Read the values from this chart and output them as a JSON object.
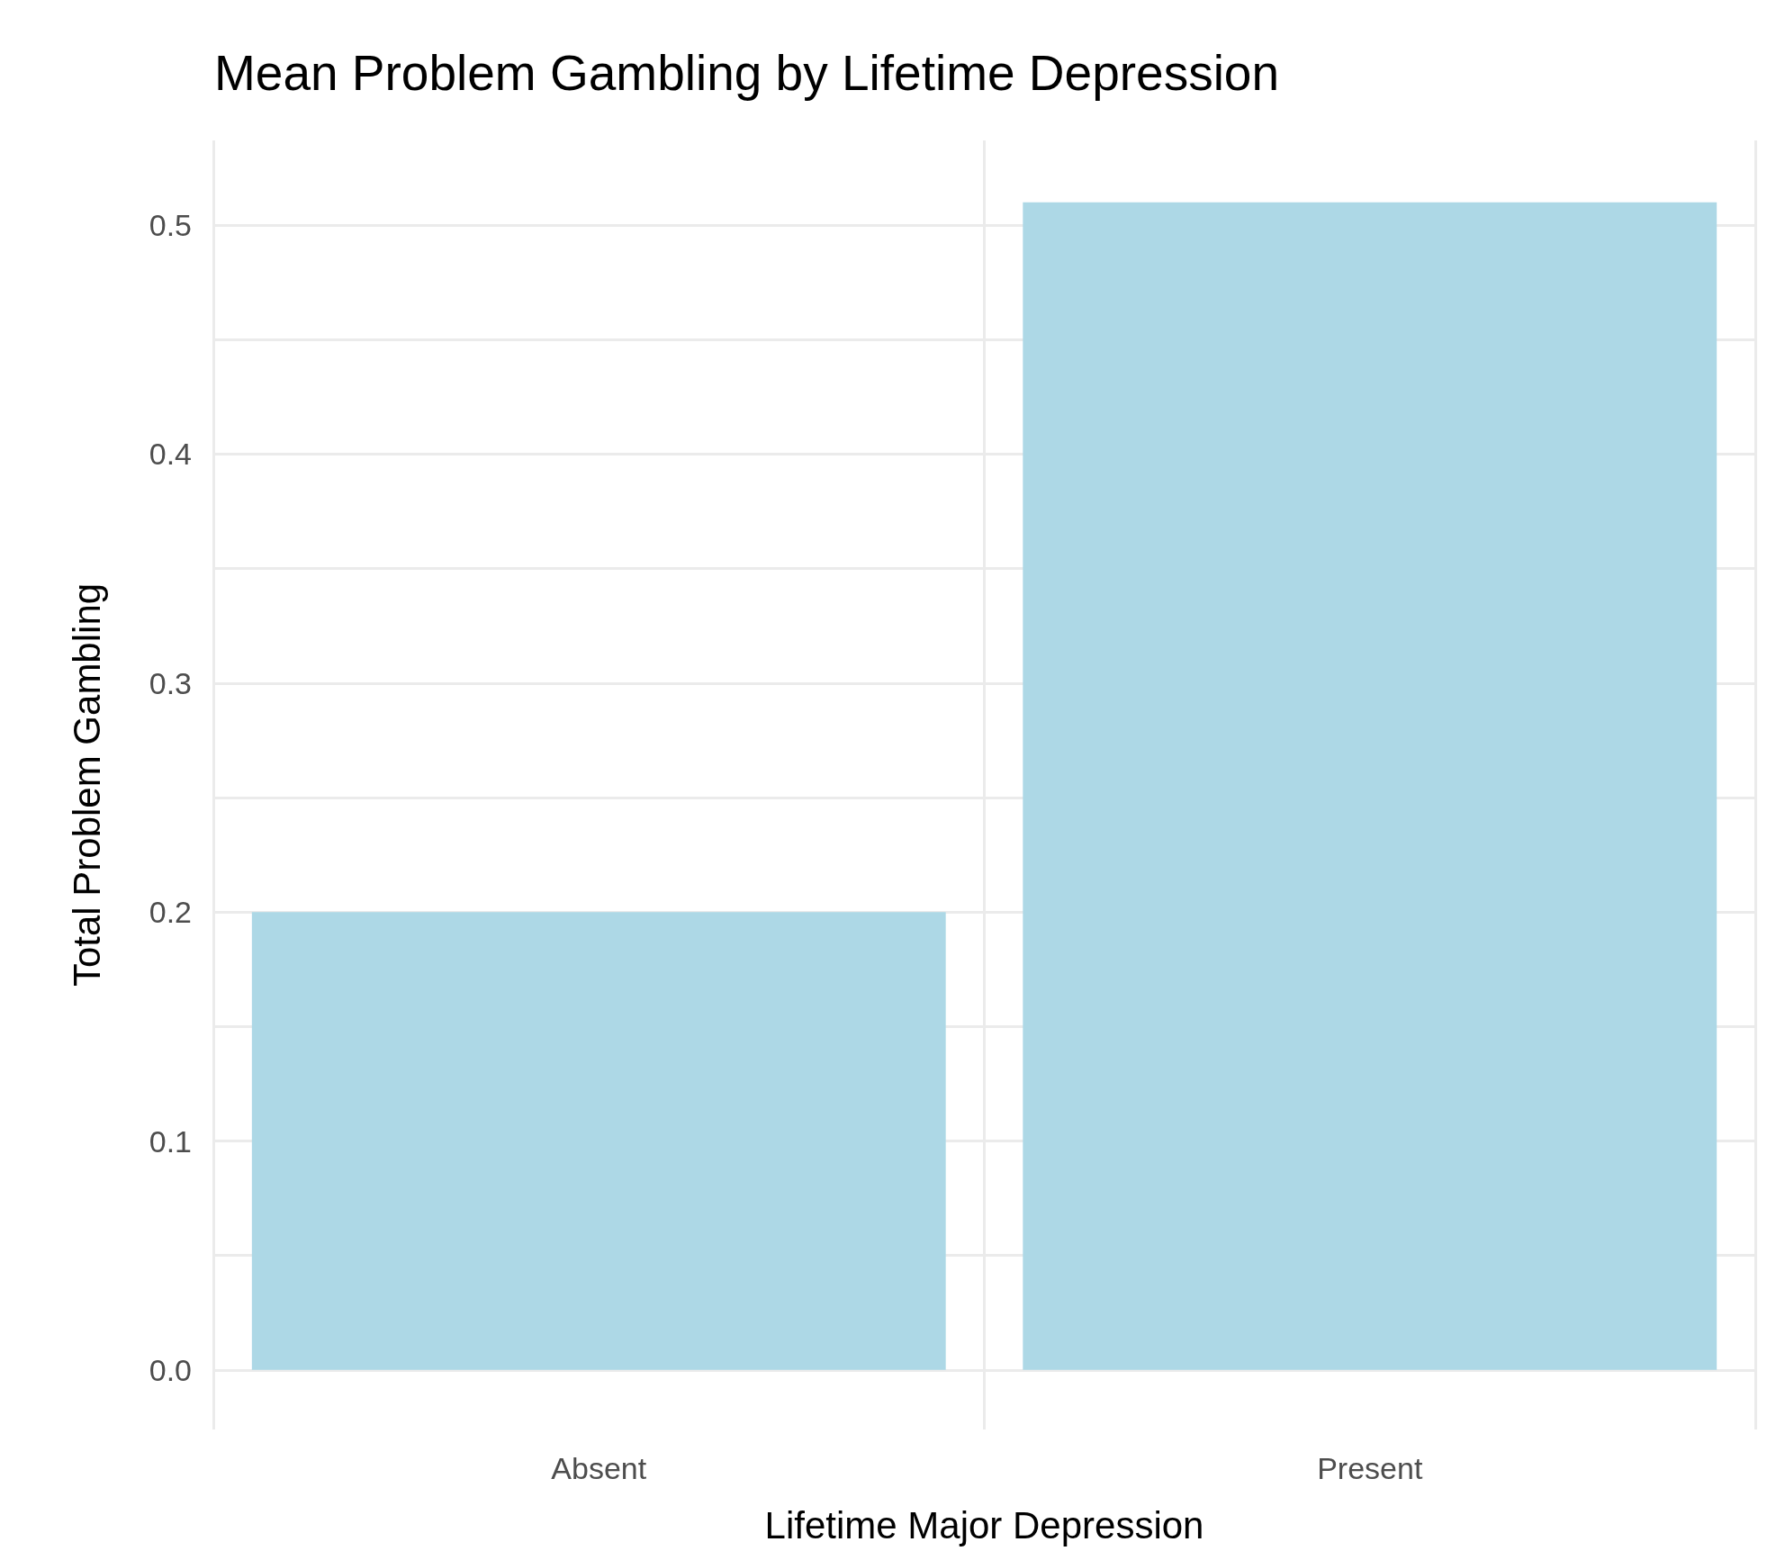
{
  "chart_data": {
    "type": "bar",
    "title": "Mean Problem Gambling by Lifetime Depression",
    "xlabel": "Lifetime Major Depression",
    "ylabel": "Total Problem Gambling",
    "categories": [
      "Absent",
      "Present"
    ],
    "values": [
      0.2,
      0.51
    ],
    "color": "#add8e6",
    "ylim": [
      -0.026,
      0.537
    ],
    "yticks": [
      {
        "value": 0,
        "label": "0.0"
      },
      {
        "value": 0.05,
        "label": null
      },
      {
        "value": 0.1,
        "label": "0.1"
      },
      {
        "value": 0.15,
        "label": null
      },
      {
        "value": 0.2,
        "label": "0.2"
      },
      {
        "value": 0.25,
        "label": null
      },
      {
        "value": 0.3,
        "label": "0.3"
      },
      {
        "value": 0.35,
        "label": null
      },
      {
        "value": 0.4,
        "label": "0.4"
      },
      {
        "value": 0.45,
        "label": null
      },
      {
        "value": 0.5,
        "label": "0.5"
      }
    ],
    "grid": true
  }
}
